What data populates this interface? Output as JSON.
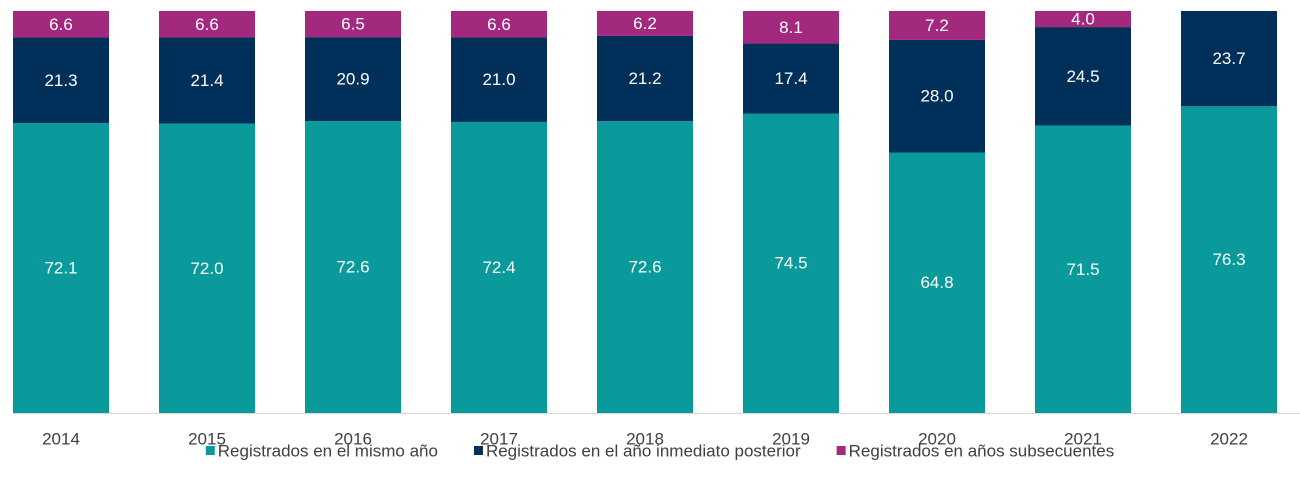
{
  "chart_data": {
    "type": "stacked_bar",
    "categories": [
      "2014",
      "2015",
      "2016",
      "2017",
      "2018",
      "2019",
      "2020",
      "2021",
      "2022"
    ],
    "ylim": [
      0,
      100
    ],
    "series": [
      {
        "name": "Registrados en el mismo año",
        "color": "#0a9a9c",
        "values": [
          72.1,
          72.0,
          72.6,
          72.4,
          72.6,
          74.5,
          64.8,
          71.5,
          76.3
        ],
        "value_labels": [
          "72.1",
          "72.0",
          "72.6",
          "72.4",
          "72.6",
          "74.5",
          "64.8",
          "71.5",
          "76.3"
        ]
      },
      {
        "name": "Registrados en el año inmediato posterior",
        "color": "#00305a",
        "values": [
          21.3,
          21.4,
          20.9,
          21.0,
          21.2,
          17.4,
          28.0,
          24.5,
          23.7
        ],
        "value_labels": [
          "21.3",
          "21.4",
          "20.9",
          "21.0",
          "21.2",
          "17.4",
          "28.0",
          "24.5",
          "23.7"
        ]
      },
      {
        "name": "Registrados en años subsecuentes",
        "color": "#a3297f",
        "values": [
          6.6,
          6.6,
          6.5,
          6.6,
          6.2,
          8.1,
          7.2,
          4.0,
          null
        ],
        "value_labels": [
          "6.6",
          "6.6",
          "6.5",
          "6.6",
          "6.2",
          "8.1",
          "7.2",
          "4.0",
          null
        ]
      }
    ],
    "legend": "bottom"
  }
}
